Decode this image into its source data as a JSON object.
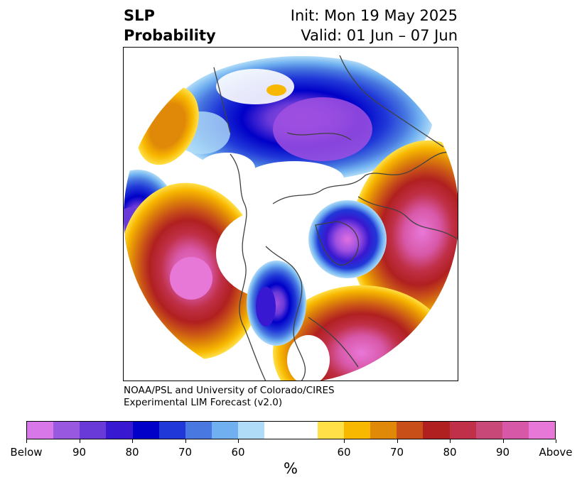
{
  "header": {
    "title_line1": "SLP",
    "title_line2": "Probability",
    "init_line": "Init: Mon 19 May 2025",
    "valid_line": "Valid: 01 Jun – 07 Jun"
  },
  "credit": {
    "line1": "NOAA/PSL and University of Colorado/CIRES",
    "line2": "Experimental LIM Forecast (v2.0)"
  },
  "colorbar": {
    "colors": [
      "#d878e8",
      "#9858e0",
      "#6a3ad8",
      "#3818d0",
      "#0000c8",
      "#2038d8",
      "#4878e0",
      "#70b0f0",
      "#b0dcf8",
      "#ffffff",
      "#ffffff",
      "#ffe048",
      "#f8b800",
      "#e08808",
      "#c85018",
      "#b02020",
      "#c03048",
      "#c84878",
      "#d858a8",
      "#e878d8"
    ],
    "tick_labels": [
      "Below",
      "90",
      "80",
      "70",
      "60",
      "60",
      "70",
      "80",
      "90",
      "Above"
    ],
    "unit": "%"
  },
  "map": {
    "projection": "north-polar-stereographic",
    "legend_placement": "bottom"
  }
}
